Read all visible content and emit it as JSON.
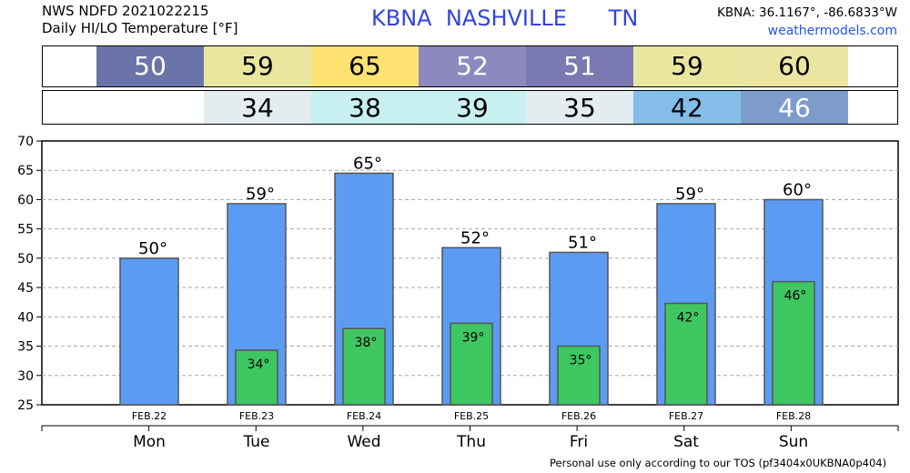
{
  "header": {
    "line1": "NWS NDFD 2021022215",
    "line2": "Daily HI/LO Temperature [°F]",
    "station": "KBNA  NASHVILLE      TN",
    "coords": "KBNA: 36.1167°, -86.6833°W",
    "site": "weathermodels.com"
  },
  "hi_strip": [
    {
      "value": "50",
      "color": "#6b74a8",
      "text_color": "#ffffff"
    },
    {
      "value": "59",
      "color": "#e9e79f",
      "text_color": "#000000"
    },
    {
      "value": "65",
      "color": "#fde272",
      "text_color": "#000000"
    },
    {
      "value": "52",
      "color": "#8b89be",
      "text_color": "#ffffff"
    },
    {
      "value": "51",
      "color": "#7b79b1",
      "text_color": "#ffffff"
    },
    {
      "value": "59",
      "color": "#e9e79f",
      "text_color": "#000000"
    },
    {
      "value": "60",
      "color": "#ebe7a3",
      "text_color": "#000000"
    }
  ],
  "lo_strip": [
    {
      "value": "",
      "color": "#ffffff",
      "text_color": "#000000"
    },
    {
      "value": "34",
      "color": "#e3ecef",
      "text_color": "#000000"
    },
    {
      "value": "38",
      "color": "#c8f0f1",
      "text_color": "#000000"
    },
    {
      "value": "39",
      "color": "#c9f0f1",
      "text_color": "#000000"
    },
    {
      "value": "35",
      "color": "#e3ecef",
      "text_color": "#000000"
    },
    {
      "value": "42",
      "color": "#85bde9",
      "text_color": "#000000"
    },
    {
      "value": "46",
      "color": "#7d9ccc",
      "text_color": "#ffffff"
    }
  ],
  "chart_data": {
    "type": "bar",
    "categories": [
      "Mon",
      "Tue",
      "Wed",
      "Thu",
      "Fri",
      "Sat",
      "Sun"
    ],
    "dates": [
      "FEB.22",
      "FEB.23",
      "FEB.24",
      "FEB.25",
      "FEB.26",
      "FEB.27",
      "FEB.28"
    ],
    "series": [
      {
        "values": [
          50,
          59.3,
          64.5,
          51.8,
          51,
          59.3,
          60
        ],
        "labels": [
          "50°",
          "59°",
          "65°",
          "52°",
          "51°",
          "59°",
          "60°"
        ],
        "color": "#5b9cf2"
      },
      {
        "values": [
          null,
          34.3,
          38,
          38.9,
          35,
          42.3,
          46
        ],
        "labels": [
          "",
          "34°",
          "38°",
          "39°",
          "35°",
          "42°",
          "46°"
        ],
        "color": "#3ec761"
      }
    ],
    "ylim": [
      25,
      70
    ],
    "yticks": [
      25,
      30,
      35,
      40,
      45,
      50,
      55,
      60,
      65,
      70
    ],
    "grid": true
  },
  "footer": {
    "tos": "Personal use only according to our TOS (pf3404x0UKBNA0p404)"
  }
}
